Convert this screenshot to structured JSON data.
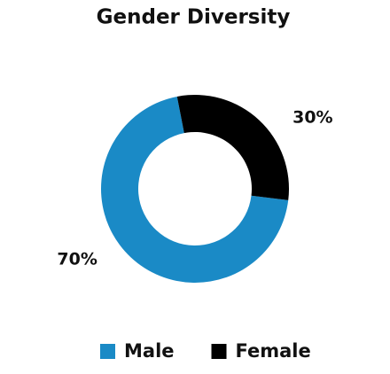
{
  "chart_data": {
    "type": "donut",
    "title": "Gender Diversity",
    "categories": [
      "Male",
      "Female"
    ],
    "values": [
      70,
      30
    ],
    "value_labels": [
      "70%",
      "30%"
    ],
    "colors": [
      "#1a8ac6",
      "#000000"
    ]
  }
}
